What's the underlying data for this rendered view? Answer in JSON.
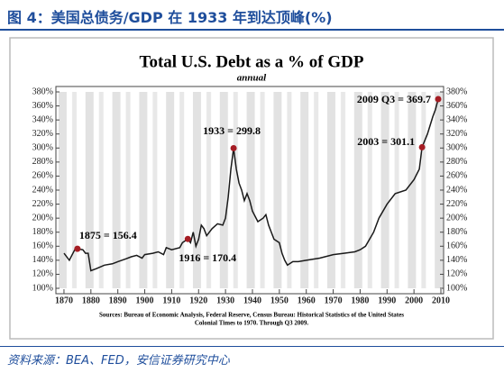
{
  "header": {
    "title": "图 4：美国总债务/GDP 在 1933 年到达顶峰(%)"
  },
  "footer": {
    "source": "资料来源：BEA、FED，安信证券研究中心"
  },
  "chart_data": {
    "type": "line",
    "title": "Total U.S. Debt as a % of GDP",
    "subtitle": "annual",
    "note": [
      "Sources: Bureau of Economic Analysis, Federal Reserve, Census Bureau: Historical Statistics of the United States",
      "Colonial Times to 1970.   Through Q3 2009."
    ],
    "x": [
      1870,
      1872,
      1874,
      1875,
      1877,
      1878,
      1879,
      1880,
      1882,
      1885,
      1888,
      1890,
      1893,
      1895,
      1897,
      1899,
      1900,
      1903,
      1905,
      1907,
      1908,
      1910,
      1913,
      1914,
      1916,
      1917,
      1918,
      1919,
      1920,
      1921,
      1922,
      1923,
      1925,
      1927,
      1929,
      1930,
      1931,
      1932,
      1933,
      1934,
      1935,
      1936,
      1937,
      1938,
      1939,
      1940,
      1942,
      1944,
      1945,
      1946,
      1948,
      1950,
      1951,
      1952,
      1953,
      1955,
      1957,
      1960,
      1965,
      1970,
      1974,
      1978,
      1980,
      1982,
      1985,
      1987,
      1990,
      1993,
      1997,
      2000,
      2002,
      2003,
      2005,
      2007,
      2008,
      2009
    ],
    "series": [
      {
        "name": "Total U.S. Debt as a % of GDP",
        "color": "#1a1a1a",
        "values": [
          150,
          140,
          155,
          156.4,
          155,
          150,
          150,
          125,
          128,
          133,
          135,
          138,
          142,
          145,
          147,
          143,
          148,
          150,
          152,
          148,
          158,
          155,
          158,
          165,
          170.4,
          165,
          180,
          160,
          170,
          190,
          185,
          175,
          185,
          192,
          190,
          200,
          230,
          270,
          299.8,
          270,
          250,
          240,
          225,
          235,
          225,
          210,
          195,
          200,
          205,
          190,
          170,
          165,
          150,
          140,
          133,
          138,
          138,
          140,
          143,
          148,
          150,
          152,
          155,
          160,
          180,
          200,
          220,
          235,
          240,
          255,
          270,
          301.1,
          320,
          345,
          355,
          369.7
        ]
      }
    ],
    "annotations": [
      {
        "x": 1875,
        "y": 156.4,
        "label": "1875 = 156.4"
      },
      {
        "x": 1916,
        "y": 170.4,
        "label": "1916 = 170.4"
      },
      {
        "x": 1933,
        "y": 299.8,
        "label": "1933 = 299.8"
      },
      {
        "x": 2003,
        "y": 301.1,
        "label": "2003 = 301.1"
      },
      {
        "x": 2009,
        "y": 369.7,
        "label": "2009 Q3 = 369.7"
      }
    ],
    "marker_color": "#a51d24",
    "xlim": [
      1867,
      2011
    ],
    "xticks": [
      1870,
      1880,
      1890,
      1900,
      1910,
      1920,
      1930,
      1940,
      1950,
      1960,
      1970,
      1980,
      1990,
      2000,
      2010
    ],
    "ylim": [
      100,
      380
    ],
    "yticks": [
      {
        "value": 100,
        "label": "100%"
      },
      {
        "value": 120,
        "label": "120%"
      },
      {
        "value": 140,
        "label": "140%"
      },
      {
        "value": 160,
        "label": "160%"
      },
      {
        "value": 180,
        "label": "180%"
      },
      {
        "value": 200,
        "label": "200%"
      },
      {
        "value": 220,
        "label": "220%"
      },
      {
        "value": 240,
        "label": "240%"
      },
      {
        "value": 260,
        "label": "260%"
      },
      {
        "value": 280,
        "label": "280%"
      },
      {
        "value": 300,
        "label": "300%"
      },
      {
        "value": 320,
        "label": "320%"
      },
      {
        "value": 340,
        "label": "340%"
      },
      {
        "value": 360,
        "label": "360%"
      },
      {
        "value": 380,
        "label": "380%"
      }
    ]
  }
}
